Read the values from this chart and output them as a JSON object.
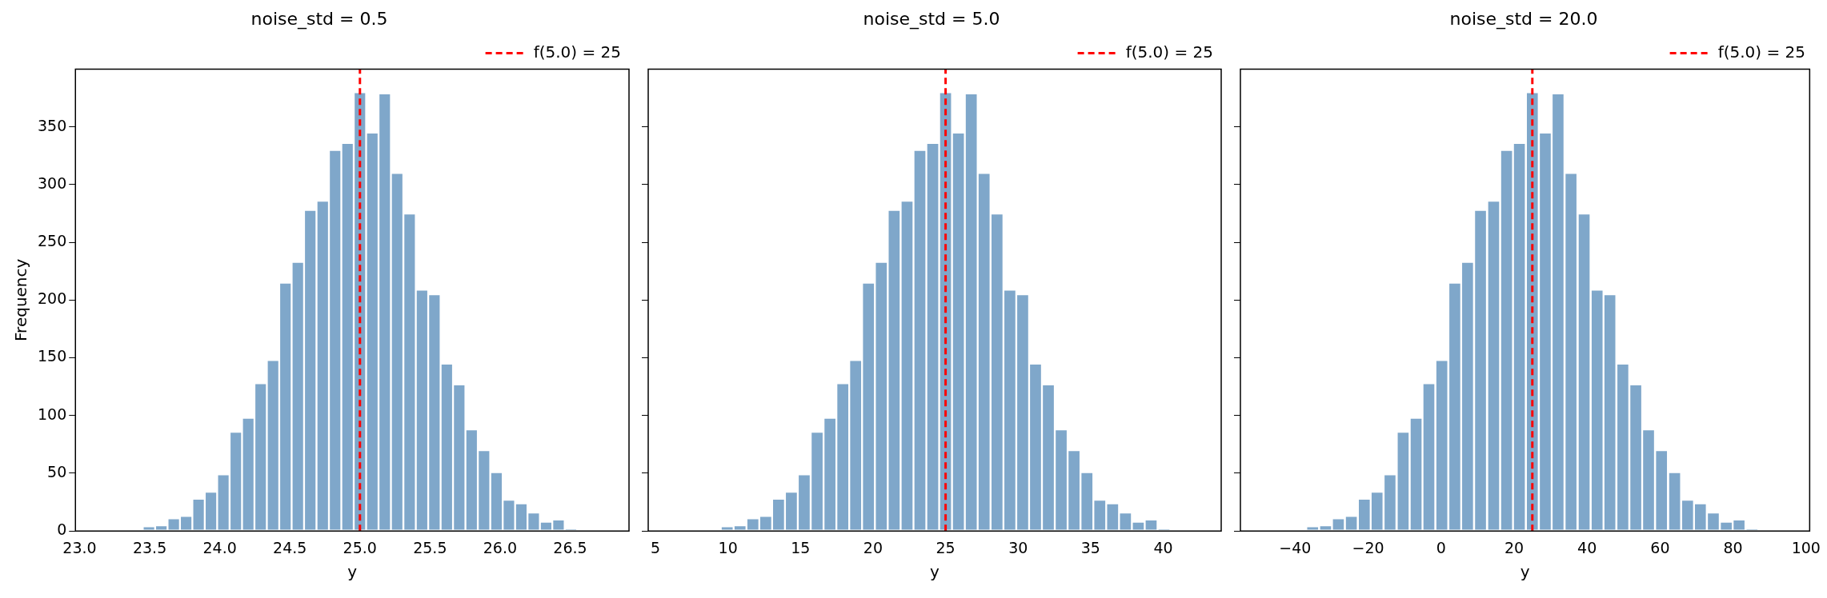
{
  "chart_data": [
    {
      "type": "histogram",
      "title": "noise_std = 0.5",
      "xlabel": "y",
      "ylabel": "Frequency",
      "color": "#7fa7ca",
      "legend": "top right",
      "bins": [
        23.45,
        23.539,
        23.627,
        23.716,
        23.804,
        23.893,
        23.981,
        24.07,
        24.159,
        24.247,
        24.336,
        24.424,
        24.513,
        24.601,
        24.69,
        24.779,
        24.867,
        24.956,
        25.044,
        25.133,
        25.221,
        25.31,
        25.399,
        25.487,
        25.576,
        25.664,
        25.753,
        25.841,
        25.93,
        26.019,
        26.107,
        26.196,
        26.284,
        26.373,
        26.461,
        26.55
      ],
      "values": [
        4,
        5,
        11,
        13,
        28,
        34,
        49,
        86,
        98,
        128,
        148,
        215,
        233,
        278,
        286,
        330,
        336,
        380,
        345,
        379,
        310,
        275,
        209,
        205,
        145,
        127,
        88,
        70,
        51,
        27,
        24,
        16,
        8,
        10,
        2
      ],
      "xlim": [
        22.97,
        26.92
      ],
      "xticks": [
        {
          "value": 23,
          "label": "23.0"
        },
        23.5,
        {
          "value": 24,
          "label": "24.0"
        },
        24.5,
        {
          "value": 25,
          "label": "25.0"
        },
        25.5,
        {
          "value": 26,
          "label": "26.0"
        },
        26.5
      ],
      "ylim": [
        0,
        400
      ],
      "yticks": [
        0,
        50,
        100,
        150,
        200,
        250,
        300,
        350
      ],
      "ref_lines": [
        {
          "axis": "x",
          "value": 25,
          "label": "f(5.0) = 25",
          "color": "#ff0000",
          "line_style": "dashed"
        }
      ]
    },
    {
      "type": "histogram",
      "title": "noise_std = 5.0",
      "xlabel": "y",
      "color": "#7fa7ca",
      "legend": "top right",
      "tick_labels": "x",
      "bins": [
        9.5,
        10.39,
        11.27,
        12.16,
        13.04,
        13.93,
        14.81,
        15.7,
        16.59,
        17.47,
        18.36,
        19.24,
        20.13,
        21.01,
        21.9,
        22.79,
        23.67,
        24.56,
        25.44,
        26.33,
        27.21,
        28.1,
        28.99,
        29.87,
        30.76,
        31.64,
        32.53,
        33.41,
        34.3,
        35.19,
        36.07,
        36.96,
        37.84,
        38.73,
        39.61,
        40.5
      ],
      "values": [
        4,
        5,
        11,
        13,
        28,
        34,
        49,
        86,
        98,
        128,
        148,
        215,
        233,
        278,
        286,
        330,
        336,
        380,
        345,
        379,
        310,
        275,
        209,
        205,
        145,
        127,
        88,
        70,
        51,
        27,
        24,
        16,
        8,
        10,
        2
      ],
      "xlim": [
        4.5,
        44
      ],
      "xticks": [
        5,
        10,
        15,
        20,
        25,
        30,
        35,
        40
      ],
      "ylim": [
        0,
        400
      ],
      "yticks": [
        0,
        50,
        100,
        150,
        200,
        250,
        300,
        350
      ],
      "ref_lines": [
        {
          "axis": "x",
          "value": 25,
          "label": "f(5.0) = 25",
          "color": "#ff0000",
          "line_style": "dashed"
        }
      ]
    },
    {
      "type": "histogram",
      "title": "noise_std = 20.0",
      "xlabel": "y",
      "color": "#7fa7ca",
      "legend": "top right",
      "tick_labels": "x",
      "bins": [
        -37,
        -33.4,
        -29.9,
        -26.4,
        -22.8,
        -19.3,
        -15.8,
        -12.2,
        -8.6,
        -5.1,
        -1.6,
        2,
        5.5,
        9,
        12.6,
        16.2,
        19.7,
        23.2,
        26.8,
        30.3,
        33.8,
        37.4,
        41,
        44.5,
        48,
        51.6,
        55.1,
        58.6,
        62.2,
        65.8,
        69.3,
        72.8,
        76.4,
        79.9,
        83.4,
        87
      ],
      "values": [
        4,
        5,
        11,
        13,
        28,
        34,
        49,
        86,
        98,
        128,
        148,
        215,
        233,
        278,
        286,
        330,
        336,
        380,
        345,
        379,
        310,
        275,
        209,
        205,
        145,
        127,
        88,
        70,
        51,
        27,
        24,
        16,
        8,
        10,
        2
      ],
      "xlim": [
        -55,
        101
      ],
      "xticks": [
        {
          "value": -40,
          "label": "−40"
        },
        {
          "value": -20,
          "label": "−20"
        },
        0,
        20,
        40,
        60,
        80,
        100
      ],
      "ylim": [
        0,
        400
      ],
      "yticks": [
        0,
        50,
        100,
        150,
        200,
        250,
        300,
        350
      ],
      "ref_lines": [
        {
          "axis": "x",
          "value": 25,
          "label": "f(5.0) = 25",
          "color": "#ff0000",
          "line_style": "dashed"
        }
      ]
    }
  ]
}
